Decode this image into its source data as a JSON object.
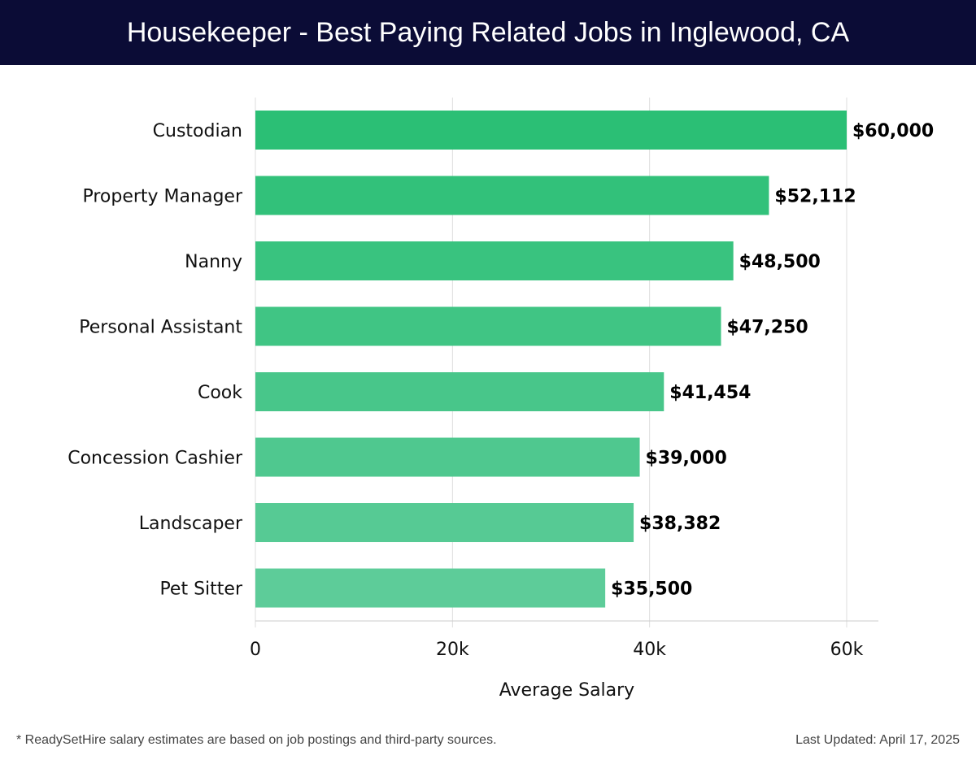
{
  "header": {
    "title": "Housekeeper - Best Paying Related Jobs in Inglewood, CA"
  },
  "chart_data": {
    "type": "bar",
    "orientation": "horizontal",
    "title": "Housekeeper - Best Paying Related Jobs in Inglewood, CA",
    "categories": [
      "Custodian",
      "Property Manager",
      "Nanny",
      "Personal Assistant",
      "Cook",
      "Concession Cashier",
      "Landscaper",
      "Pet Sitter"
    ],
    "values": [
      60000,
      52112,
      48500,
      47250,
      41454,
      39000,
      38382,
      35500
    ],
    "value_labels": [
      "$60,000",
      "$52,112",
      "$48,500",
      "$47,250",
      "$41,454",
      "$39,000",
      "$38,382",
      "$35,500"
    ],
    "xlabel": "Average Salary",
    "ylabel": "",
    "xlim": [
      0,
      63000
    ],
    "xticks": [
      0,
      20000,
      40000,
      60000
    ],
    "xtick_labels": [
      "0",
      "20k",
      "40k",
      "60k"
    ],
    "grid": true,
    "colors": {
      "top": "#2bbf75",
      "bottom": "#5dcc99"
    }
  },
  "footer": {
    "note": "* ReadySetHire salary estimates are based on job postings and third-party sources.",
    "updated": "Last Updated: April 17, 2025"
  }
}
